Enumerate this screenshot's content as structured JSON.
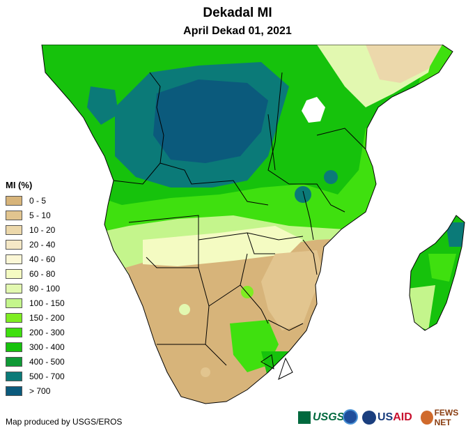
{
  "title": "Dekadal MI",
  "subtitle": "April Dekad 01, 2021",
  "legend": {
    "title": "MI (%)",
    "items": [
      {
        "label": "0 - 5",
        "color": "#d7b47a"
      },
      {
        "label": "5 - 10",
        "color": "#e2c58f"
      },
      {
        "label": "10 - 20",
        "color": "#ecd8ab"
      },
      {
        "label": "20 - 40",
        "color": "#f5e8c6"
      },
      {
        "label": "40 - 60",
        "color": "#fbf7d6"
      },
      {
        "label": "60 - 80",
        "color": "#f4fbc2"
      },
      {
        "label": "80 - 100",
        "color": "#e2f8b0"
      },
      {
        "label": "100 - 150",
        "color": "#c4f58c"
      },
      {
        "label": "150 - 200",
        "color": "#7fed22"
      },
      {
        "label": "200 - 300",
        "color": "#3fe00f"
      },
      {
        "label": "300 - 400",
        "color": "#16c20c"
      },
      {
        "label": "400 - 500",
        "color": "#0f9a36"
      },
      {
        "label": "500 - 700",
        "color": "#0b7a78"
      },
      {
        "label": "> 700",
        "color": "#0b5a7c"
      }
    ]
  },
  "credit": "Map produced by USGS/EROS",
  "logos": {
    "usgs": "USGS",
    "usaid_us": "US",
    "usaid_aid": "AID",
    "fews": "FEWS NET"
  }
}
